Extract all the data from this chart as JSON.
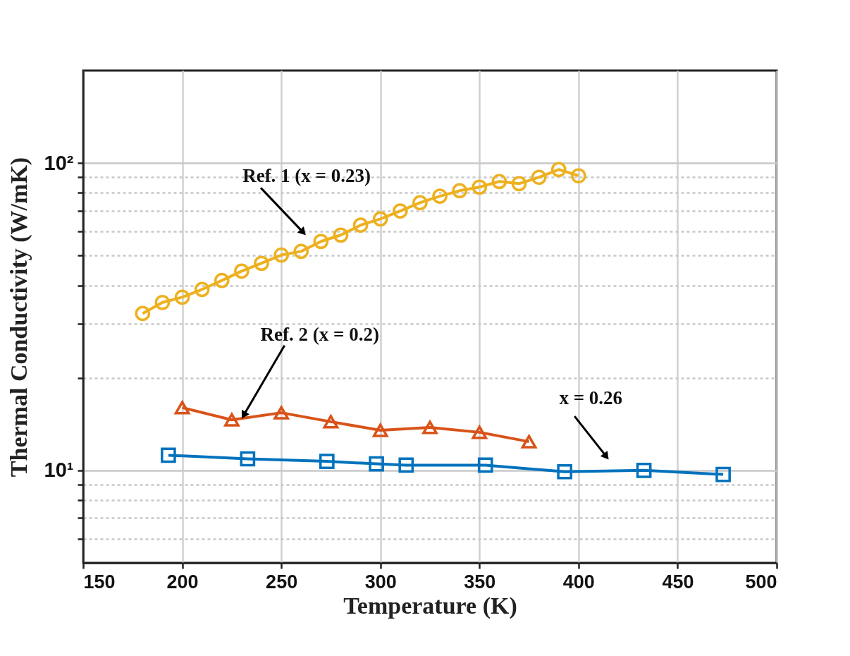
{
  "chart_data": {
    "type": "line",
    "xlabel": "Temperature (K)",
    "ylabel": "Thermal Conductivity (W/mK)",
    "xlim": [
      150,
      500
    ],
    "xticks": [
      150,
      200,
      250,
      300,
      350,
      400,
      450,
      500
    ],
    "ylim": [
      5,
      200
    ],
    "log": "y",
    "yticks": [
      {
        "value": 6,
        "label": null
      },
      {
        "value": 7,
        "label": null
      },
      {
        "value": 8,
        "label": null
      },
      {
        "value": 9,
        "label": null
      },
      {
        "value": 10,
        "label": "10¹"
      },
      {
        "value": 20,
        "label": null
      },
      {
        "value": 30,
        "label": null
      },
      {
        "value": 40,
        "label": null
      },
      {
        "value": 50,
        "label": null
      },
      {
        "value": 60,
        "label": null
      },
      {
        "value": 70,
        "label": null
      },
      {
        "value": 80,
        "label": null
      },
      {
        "value": 90,
        "label": null
      },
      {
        "value": 100,
        "label": "10²"
      }
    ],
    "grid": true,
    "line_style": "solid",
    "series": [
      {
        "color": "#edb120",
        "marker": "circle",
        "x": [
          180,
          190,
          200,
          210,
          220,
          230,
          240,
          250,
          260,
          270,
          280,
          290,
          300,
          310,
          320,
          330,
          340,
          350,
          360,
          370,
          380,
          390,
          400
        ],
        "values": [
          32.4,
          35.2,
          36.6,
          38.8,
          41.5,
          44.5,
          47.2,
          50.2,
          51.6,
          55.6,
          58.3,
          62.8,
          65.8,
          69.8,
          74.3,
          78.0,
          81.3,
          83.5,
          87.1,
          85.7,
          89.9,
          95.3,
          90.9
        ]
      },
      {
        "color": "#d95319",
        "marker": "triangle",
        "x": [
          200,
          225,
          250,
          275,
          300,
          325,
          350,
          375
        ],
        "values": [
          16.0,
          14.6,
          15.4,
          14.4,
          13.5,
          13.8,
          13.3,
          12.4
        ]
      },
      {
        "color": "#0072bd",
        "marker": "square",
        "x": [
          193,
          233,
          273,
          298,
          313,
          353,
          393,
          433,
          473
        ],
        "values": [
          11.2,
          10.9,
          10.7,
          10.5,
          10.4,
          10.4,
          9.9,
          10.0,
          9.7
        ]
      }
    ],
    "annotations": [
      "Ref. 1 (x = 0.23)",
      {
        "text": "Ref. 2 (x = 0.2)",
        "x": 231,
        "y": 14.8
      },
      "x = 0.26"
    ]
  }
}
